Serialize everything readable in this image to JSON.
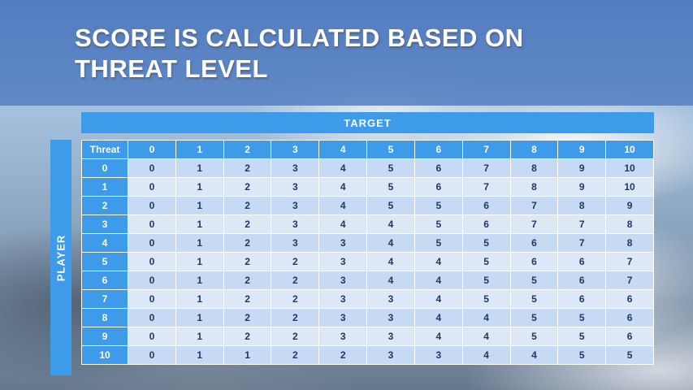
{
  "slide": {
    "title_line1": "SCORE IS CALCULATED BASED ON",
    "title_line2": "THREAT LEVEL"
  },
  "table": {
    "target_label": "TARGET",
    "player_label": "PLAYER",
    "corner_label": "Threat",
    "column_headers": [
      "0",
      "1",
      "2",
      "3",
      "4",
      "5",
      "6",
      "7",
      "8",
      "9",
      "10"
    ],
    "rows": [
      {
        "label": "0",
        "values": [
          "0",
          "1",
          "2",
          "3",
          "4",
          "5",
          "6",
          "7",
          "8",
          "9",
          "10"
        ]
      },
      {
        "label": "1",
        "values": [
          "0",
          "1",
          "2",
          "3",
          "4",
          "5",
          "6",
          "7",
          "8",
          "9",
          "10"
        ]
      },
      {
        "label": "2",
        "values": [
          "0",
          "1",
          "2",
          "3",
          "4",
          "5",
          "5",
          "6",
          "7",
          "8",
          "9"
        ]
      },
      {
        "label": "3",
        "values": [
          "0",
          "1",
          "2",
          "3",
          "4",
          "4",
          "5",
          "6",
          "7",
          "7",
          "8"
        ]
      },
      {
        "label": "4",
        "values": [
          "0",
          "1",
          "2",
          "3",
          "3",
          "4",
          "5",
          "5",
          "6",
          "7",
          "8"
        ]
      },
      {
        "label": "5",
        "values": [
          "0",
          "1",
          "2",
          "2",
          "3",
          "4",
          "4",
          "5",
          "6",
          "6",
          "7"
        ]
      },
      {
        "label": "6",
        "values": [
          "0",
          "1",
          "2",
          "2",
          "3",
          "4",
          "4",
          "5",
          "5",
          "6",
          "7"
        ]
      },
      {
        "label": "7",
        "values": [
          "0",
          "1",
          "2",
          "2",
          "3",
          "3",
          "4",
          "5",
          "5",
          "6",
          "6"
        ]
      },
      {
        "label": "8",
        "values": [
          "0",
          "1",
          "2",
          "2",
          "3",
          "3",
          "4",
          "4",
          "5",
          "5",
          "6"
        ]
      },
      {
        "label": "9",
        "values": [
          "0",
          "1",
          "2",
          "2",
          "3",
          "3",
          "4",
          "4",
          "5",
          "5",
          "6"
        ]
      },
      {
        "label": "10",
        "values": [
          "0",
          "1",
          "1",
          "2",
          "2",
          "3",
          "3",
          "4",
          "4",
          "5",
          "5"
        ]
      }
    ]
  },
  "colors": {
    "accent_blue": "#3D9BE9",
    "banner_blue": "#5482C4",
    "row_band_a": "#C7DAF3",
    "row_band_b": "#DDE8F7",
    "value_text": "#1F3864"
  }
}
